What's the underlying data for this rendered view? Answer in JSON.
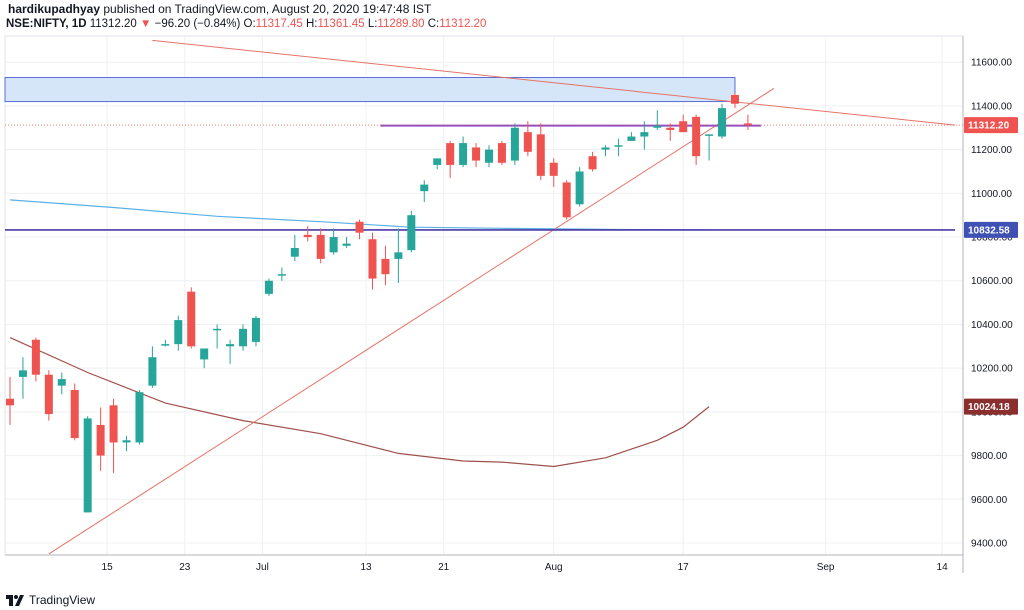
{
  "header": {
    "author": "hardikupadhyay",
    "published_text": "published on TradingView.com, August 20, 2020 19:47:48 IST",
    "symbol": "NSE:NIFTY, 1D",
    "last_price": "11312.20",
    "arrow": "▼",
    "change": "−96.20 (−0.84%)",
    "ohlc": {
      "o_label": "O:",
      "o": "11317.45",
      "h_label": "H:",
      "h": "11361.45",
      "l_label": "L:",
      "l": "11289.80",
      "c_label": "C:",
      "c": "11312.20"
    }
  },
  "footer": {
    "brand": "TradingView"
  },
  "colors": {
    "up": "#26a69a",
    "down": "#ef5350",
    "ma_blue": "#5ab1e6",
    "ma_brown": "#a0504a",
    "trend_red": "#e57368",
    "support_purple": "#4a3aa8",
    "resistance_purple": "#8a4fc9",
    "zone_fill": "#d6e6f9",
    "zone_border": "#5b6bd9"
  },
  "chart_data": {
    "type": "candlestick",
    "symbol": "NSE:NIFTY",
    "interval": "1D",
    "y_axis": {
      "ticks": [
        9400,
        9600,
        9800,
        10000,
        10200,
        10400,
        10600,
        10800,
        11000,
        11200,
        11400,
        11600
      ],
      "tick_labels": [
        "9400.00",
        "9600.00",
        "9800.00",
        "10000.00",
        "10200.00",
        "10400.00",
        "10600.00",
        "10800.00",
        "11000.00",
        "11200.00",
        "11400.00",
        "11600.00"
      ],
      "range": [
        9345,
        11720
      ]
    },
    "x_axis": {
      "range": [
        0,
        74
      ],
      "ticks": [
        {
          "label": "15",
          "x": 7.5
        },
        {
          "label": "23",
          "x": 13.5
        },
        {
          "label": "Jul",
          "x": 19.5
        },
        {
          "label": "13",
          "x": 27.5
        },
        {
          "label": "21",
          "x": 33.5
        },
        {
          "label": "Aug",
          "x": 42.0
        },
        {
          "label": "17",
          "x": 52.0
        },
        {
          "label": "Sep",
          "x": 63.0
        },
        {
          "label": "14",
          "x": 72.0
        }
      ]
    },
    "price_labels": [
      {
        "value": 11312.2,
        "text": "11312.20",
        "color": "#ef5350"
      },
      {
        "value": 10832.58,
        "text": "10832.58",
        "color": "#3f51b5"
      },
      {
        "value": 10024.18,
        "text": "10024.18",
        "color": "#8b2e2e"
      }
    ],
    "candles": [
      {
        "o": 10060,
        "h": 10160,
        "l": 9940,
        "c": 10030
      },
      {
        "o": 10160,
        "h": 10250,
        "l": 10060,
        "c": 10190
      },
      {
        "o": 10330,
        "h": 10340,
        "l": 10140,
        "c": 10170
      },
      {
        "o": 10170,
        "h": 10190,
        "l": 9960,
        "c": 9990
      },
      {
        "o": 10120,
        "h": 10180,
        "l": 10080,
        "c": 10150
      },
      {
        "o": 10100,
        "h": 10130,
        "l": 9870,
        "c": 9880
      },
      {
        "o": 9540,
        "h": 9980,
        "l": 9540,
        "c": 9970
      },
      {
        "o": 9940,
        "h": 10020,
        "l": 9730,
        "c": 9800
      },
      {
        "o": 10030,
        "h": 10060,
        "l": 9720,
        "c": 9860
      },
      {
        "o": 9860,
        "h": 9890,
        "l": 9820,
        "c": 9870
      },
      {
        "o": 9860,
        "h": 10100,
        "l": 9850,
        "c": 10090
      },
      {
        "o": 10120,
        "h": 10300,
        "l": 10110,
        "c": 10250
      },
      {
        "o": 10310,
        "h": 10330,
        "l": 10300,
        "c": 10310
      },
      {
        "o": 10310,
        "h": 10440,
        "l": 10280,
        "c": 10420
      },
      {
        "o": 10550,
        "h": 10570,
        "l": 10290,
        "c": 10300
      },
      {
        "o": 10240,
        "h": 10290,
        "l": 10200,
        "c": 10290
      },
      {
        "o": 10380,
        "h": 10400,
        "l": 10290,
        "c": 10380
      },
      {
        "o": 10300,
        "h": 10330,
        "l": 10220,
        "c": 10310
      },
      {
        "o": 10300,
        "h": 10400,
        "l": 10280,
        "c": 10380
      },
      {
        "o": 10320,
        "h": 10440,
        "l": 10300,
        "c": 10430
      },
      {
        "o": 10540,
        "h": 10610,
        "l": 10530,
        "c": 10600
      },
      {
        "o": 10630,
        "h": 10660,
        "l": 10600,
        "c": 10630
      },
      {
        "o": 10710,
        "h": 10810,
        "l": 10690,
        "c": 10750
      },
      {
        "o": 10810,
        "h": 10850,
        "l": 10780,
        "c": 10800
      },
      {
        "o": 10810,
        "h": 10840,
        "l": 10680,
        "c": 10700
      },
      {
        "o": 10730,
        "h": 10840,
        "l": 10720,
        "c": 10800
      },
      {
        "o": 10760,
        "h": 10800,
        "l": 10750,
        "c": 10770
      },
      {
        "o": 10870,
        "h": 10880,
        "l": 10790,
        "c": 10820
      },
      {
        "o": 10790,
        "h": 10820,
        "l": 10560,
        "c": 10610
      },
      {
        "o": 10700,
        "h": 10760,
        "l": 10580,
        "c": 10630
      },
      {
        "o": 10700,
        "h": 10840,
        "l": 10590,
        "c": 10730
      },
      {
        "o": 10740,
        "h": 10920,
        "l": 10730,
        "c": 10900
      },
      {
        "o": 11010,
        "h": 11060,
        "l": 10960,
        "c": 11040
      },
      {
        "o": 11130,
        "h": 11160,
        "l": 11110,
        "c": 11160
      },
      {
        "o": 11230,
        "h": 11240,
        "l": 11070,
        "c": 11130
      },
      {
        "o": 11130,
        "h": 11260,
        "l": 11120,
        "c": 11230
      },
      {
        "o": 11210,
        "h": 11230,
        "l": 11120,
        "c": 11150
      },
      {
        "o": 11140,
        "h": 11220,
        "l": 11120,
        "c": 11200
      },
      {
        "o": 11230,
        "h": 11240,
        "l": 11130,
        "c": 11140
      },
      {
        "o": 11150,
        "h": 11320,
        "l": 11130,
        "c": 11300
      },
      {
        "o": 11280,
        "h": 11330,
        "l": 11170,
        "c": 11190
      },
      {
        "o": 11270,
        "h": 11320,
        "l": 11060,
        "c": 11080
      },
      {
        "o": 11140,
        "h": 11160,
        "l": 11030,
        "c": 11080
      },
      {
        "o": 11050,
        "h": 11060,
        "l": 10880,
        "c": 10890
      },
      {
        "o": 10950,
        "h": 11120,
        "l": 10940,
        "c": 11100
      },
      {
        "o": 11170,
        "h": 11190,
        "l": 11100,
        "c": 11110
      },
      {
        "o": 11200,
        "h": 11220,
        "l": 11170,
        "c": 11210
      },
      {
        "o": 11220,
        "h": 11250,
        "l": 11170,
        "c": 11220
      },
      {
        "o": 11240,
        "h": 11280,
        "l": 11240,
        "c": 11260
      },
      {
        "o": 11260,
        "h": 11330,
        "l": 11200,
        "c": 11280
      },
      {
        "o": 11300,
        "h": 11380,
        "l": 11290,
        "c": 11310
      },
      {
        "o": 11300,
        "h": 11320,
        "l": 11240,
        "c": 11290
      },
      {
        "o": 11330,
        "h": 11360,
        "l": 11300,
        "c": 11280
      },
      {
        "o": 11350,
        "h": 11360,
        "l": 11130,
        "c": 11170
      },
      {
        "o": 11270,
        "h": 11270,
        "l": 11150,
        "c": 11270
      },
      {
        "o": 11260,
        "h": 11410,
        "l": 11250,
        "c": 11390
      },
      {
        "o": 11450,
        "h": 11460,
        "l": 11390,
        "c": 11410
      },
      {
        "o": 11320,
        "h": 11360,
        "l": 11290,
        "c": 11312
      }
    ],
    "moving_averages": [
      {
        "color": "#5ab1e6",
        "points": [
          [
            0,
            10970
          ],
          [
            8,
            10935
          ],
          [
            16,
            10895
          ],
          [
            24,
            10870
          ],
          [
            31,
            10845
          ],
          [
            38,
            10840
          ],
          [
            46,
            10835
          ],
          [
            54,
            10832.58
          ]
        ]
      },
      {
        "color": "#a0504a",
        "points": [
          [
            0,
            10340
          ],
          [
            6,
            10180
          ],
          [
            12,
            10040
          ],
          [
            18,
            9960
          ],
          [
            24,
            9900
          ],
          [
            30,
            9810
          ],
          [
            35,
            9775
          ],
          [
            38,
            9770
          ],
          [
            42,
            9750
          ],
          [
            46,
            9790
          ],
          [
            50,
            9870
          ],
          [
            52,
            9930
          ],
          [
            54,
            10024.18
          ]
        ]
      }
    ],
    "trend_lines": [
      {
        "color": "#e57368",
        "p1": [
          3,
          9350
        ],
        "p2": [
          59,
          11480
        ]
      },
      {
        "color": "#e57368",
        "p1": [
          11,
          11700
        ],
        "p2": [
          73,
          11312.2
        ]
      }
    ],
    "horizontal_lines": [
      {
        "color": "#4a3aa8",
        "value": 10832.58,
        "x1": 0,
        "x2": 73
      },
      {
        "color": "#8a4fc9",
        "value": 11310,
        "x1": 29,
        "x2": 58
      }
    ],
    "zones": [
      {
        "top": 11530,
        "bottom": 11420,
        "x1": 0,
        "x2": 56
      }
    ],
    "last_price_line": {
      "value": 11312.2,
      "color": "#ef5350"
    }
  }
}
